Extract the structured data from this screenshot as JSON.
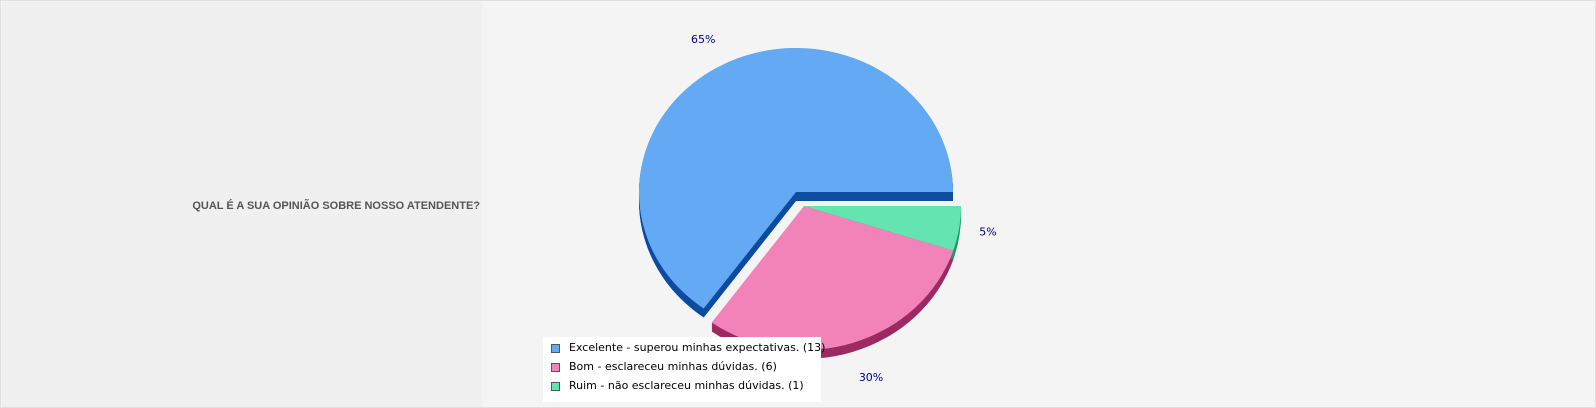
{
  "question": "QUAL É A SUA OPINIÃO SOBRE NOSSO ATENDENTE?",
  "chart_data": {
    "type": "pie",
    "title": "",
    "slices": [
      {
        "label": "Excelente - superou minhas expectativas. (13)",
        "value": 13,
        "percent_label": "65%",
        "color": "#63a9f4",
        "side_color": "#0d4c9e",
        "exploded": false
      },
      {
        "label": "Bom - esclareceu minhas dúvidas. (6)",
        "value": 6,
        "percent_label": "30%",
        "color": "#f283b9",
        "side_color": "#9c2a63",
        "exploded": true
      },
      {
        "label": "Ruim - não esclareceu minhas dúvidas. (1)",
        "value": 1,
        "percent_label": "5%",
        "color": "#64e4b0",
        "side_color": "#1f9a66",
        "exploded": true
      }
    ],
    "legend_position": "bottom-left",
    "style": "3d"
  }
}
